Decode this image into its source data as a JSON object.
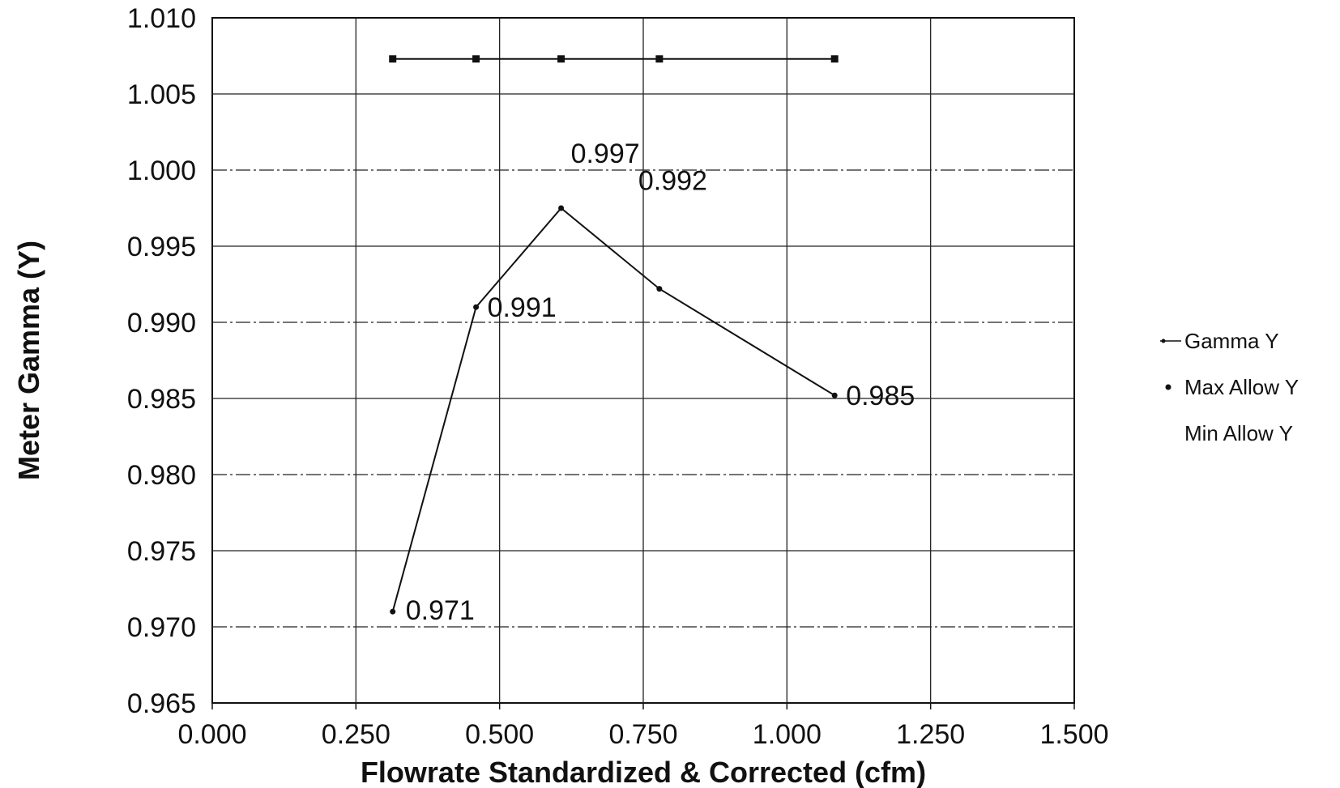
{
  "chart_data": {
    "type": "line",
    "title": "",
    "xlabel": "Flowrate Standardized & Corrected (cfm)",
    "ylabel": "Meter Gamma (Y)",
    "xlim": [
      0.0,
      1.5
    ],
    "ylim": [
      0.965,
      1.01
    ],
    "x_ticks": [
      "0.000",
      "0.250",
      "0.500",
      "0.750",
      "1.000",
      "1.250",
      "1.500"
    ],
    "y_ticks": [
      "0.965",
      "0.970",
      "0.975",
      "0.980",
      "0.985",
      "0.990",
      "0.995",
      "1.000",
      "1.005",
      "1.010"
    ],
    "grid": true,
    "legend_position": "right",
    "series": [
      {
        "name": "Gamma Y",
        "x": [
          0.314,
          0.459,
          0.607,
          0.778,
          1.083
        ],
        "y": [
          0.971,
          0.991,
          0.9975,
          0.9922,
          0.9852
        ],
        "labels": [
          "0.971",
          "0.991",
          "0.997",
          "0.992",
          "0.985"
        ],
        "color": "#111111"
      },
      {
        "name": "Max Allow Y",
        "x": [
          0.314,
          0.459,
          0.607,
          0.778,
          1.083
        ],
        "y": [
          1.0073,
          1.0073,
          1.0073,
          1.0073,
          1.0073
        ],
        "color": "#111111"
      },
      {
        "name": "Min Allow Y",
        "x": [],
        "y": [],
        "color": "#111111"
      }
    ]
  }
}
